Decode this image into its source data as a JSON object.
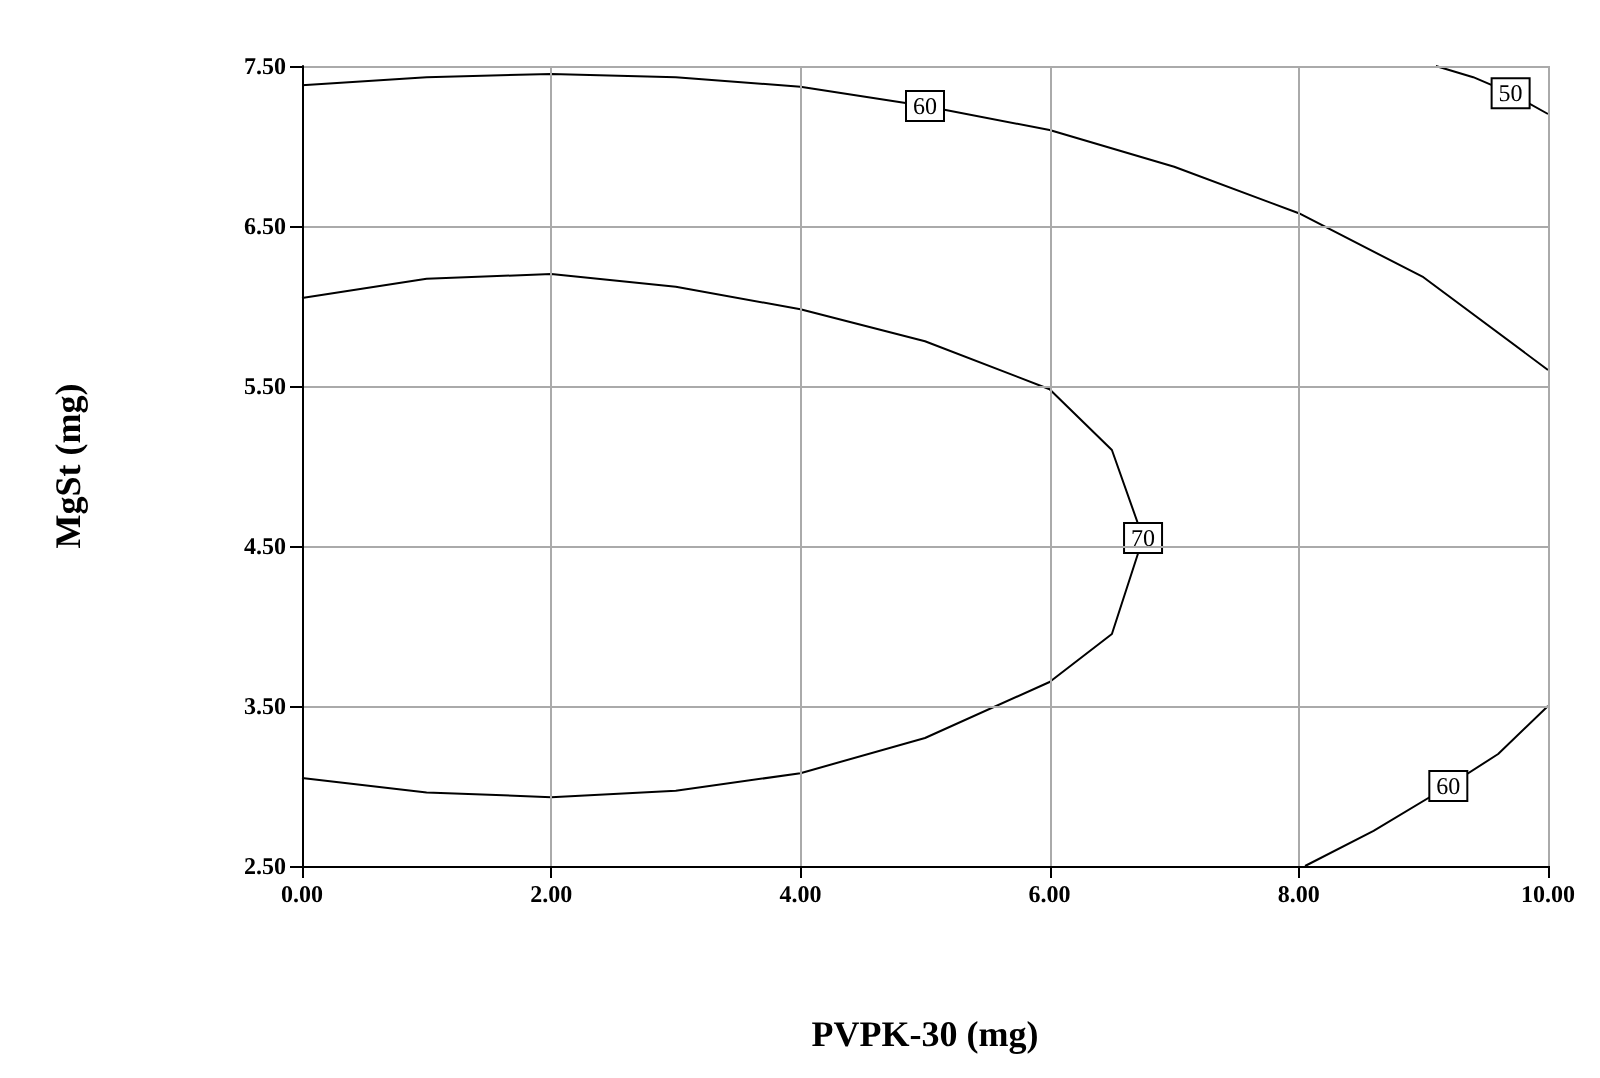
{
  "chart_data": {
    "type": "line",
    "xlabel": "PVPK-30 (mg)",
    "ylabel": "MgSt (mg)",
    "xlim": [
      0,
      10
    ],
    "ylim": [
      2.5,
      7.5
    ],
    "xticks": [
      {
        "value": 0,
        "label": "0.00"
      },
      {
        "value": 2,
        "label": "2.00"
      },
      {
        "value": 4,
        "label": "4.00"
      },
      {
        "value": 6,
        "label": "6.00"
      },
      {
        "value": 8,
        "label": "8.00"
      },
      {
        "value": 10,
        "label": "10.00"
      }
    ],
    "yticks": [
      {
        "value": 2.5,
        "label": "2.50"
      },
      {
        "value": 3.5,
        "label": "3.50"
      },
      {
        "value": 4.5,
        "label": "4.50"
      },
      {
        "value": 5.5,
        "label": "5.50"
      },
      {
        "value": 6.5,
        "label": "6.50"
      },
      {
        "value": 7.5,
        "label": "7.50"
      }
    ],
    "grid": true,
    "marker": "none",
    "series": [
      {
        "name": "70",
        "color": "#000000",
        "x": [
          0,
          1,
          2,
          3,
          4,
          5,
          6,
          6.5,
          6.75,
          6.5,
          6,
          5,
          4,
          3,
          2,
          1,
          0
        ],
        "values": [
          6.05,
          6.17,
          6.2,
          6.12,
          5.98,
          5.78,
          5.48,
          5.1,
          4.55,
          3.95,
          3.65,
          3.3,
          3.08,
          2.97,
          2.93,
          2.96,
          3.05
        ]
      },
      {
        "name": "60",
        "color": "#000000",
        "x": [
          0,
          1,
          2,
          3,
          4,
          5,
          6,
          7,
          8,
          9,
          10
        ],
        "values": [
          7.38,
          7.43,
          7.45,
          7.43,
          7.37,
          7.25,
          7.1,
          6.87,
          6.58,
          6.18,
          5.6
        ]
      },
      {
        "name": "60",
        "color": "#000000",
        "x": [
          8.05,
          8.6,
          9.2,
          9.6,
          10
        ],
        "values": [
          2.5,
          2.72,
          3.0,
          3.2,
          3.5
        ]
      },
      {
        "name": "50",
        "color": "#000000",
        "x": [
          9.1,
          9.4,
          9.7,
          10
        ],
        "values": [
          7.5,
          7.43,
          7.33,
          7.2
        ]
      }
    ]
  }
}
